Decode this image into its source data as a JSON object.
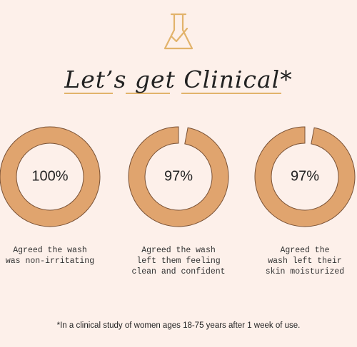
{
  "chart_data": {
    "type": "donut",
    "title": "Let’s get Clinical*",
    "categories": [
      "Agreed the wash\nwas non-irritating",
      "Agreed the wash\nleft them feeling\nclean and confident",
      "Agreed the\nwash left their\nskin moisturized"
    ],
    "values": [
      100,
      97,
      97
    ],
    "value_labels": [
      "100%",
      "97%",
      "97%"
    ],
    "total": 100,
    "color": "#e0a46e",
    "footnote": "*In a clinical study of women ages 18-75 years after 1 week of use."
  }
}
